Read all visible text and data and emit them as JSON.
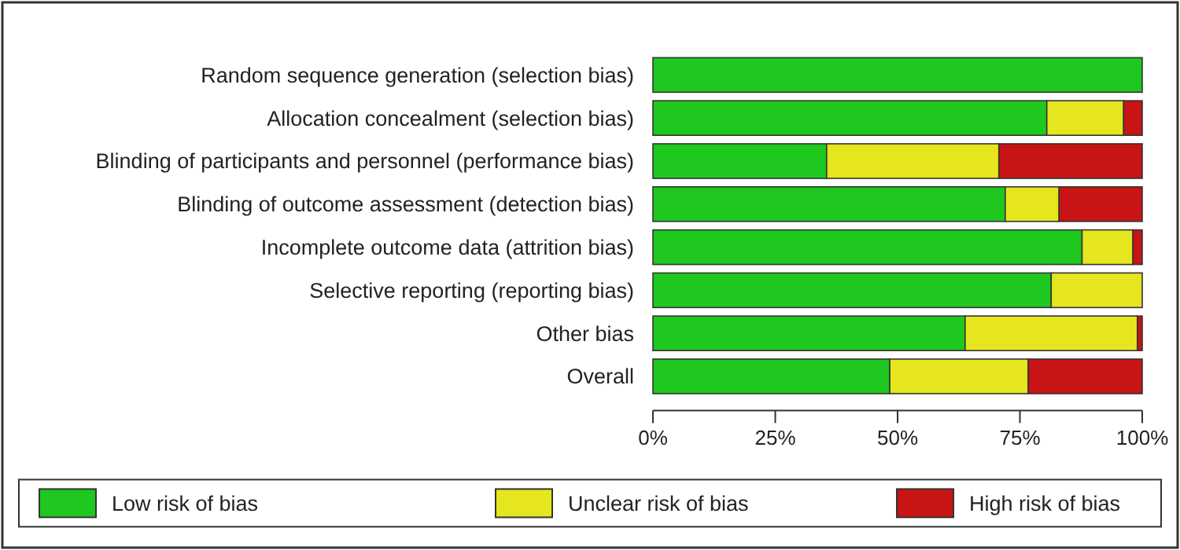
{
  "chart_data": {
    "type": "bar",
    "orientation": "horizontal",
    "stacked": true,
    "categories": [
      "Random sequence generation (selection bias)",
      "Allocation concealment (selection bias)",
      "Blinding of participants and personnel (performance bias)",
      "Blinding of outcome assessment (detection bias)",
      "Incomplete outcome data (attrition bias)",
      "Selective reporting (reporting bias)",
      "Other bias",
      "Overall"
    ],
    "series": [
      {
        "name": "Low risk of bias",
        "color": "#1ec81e",
        "values": [
          100,
          80.5,
          35.5,
          72,
          87.7,
          81.4,
          63.8,
          48.4
        ]
      },
      {
        "name": "Unclear risk of bias",
        "color": "#e6e61e",
        "values": [
          0,
          15.7,
          35.2,
          11,
          10.4,
          18.6,
          35.2,
          28.3
        ]
      },
      {
        "name": "High risk of bias",
        "color": "#c81414",
        "values": [
          0,
          3.8,
          29.3,
          17,
          1.9,
          0,
          1,
          23.3
        ]
      }
    ],
    "xlim": [
      0,
      100
    ],
    "xticks": [
      {
        "value": 0,
        "label": "0%"
      },
      {
        "value": 25,
        "label": "25%"
      },
      {
        "value": 50,
        "label": "50%"
      },
      {
        "value": 75,
        "label": "75%"
      },
      {
        "value": 100,
        "label": "100%"
      }
    ],
    "legend": "bottom",
    "grid": false
  }
}
